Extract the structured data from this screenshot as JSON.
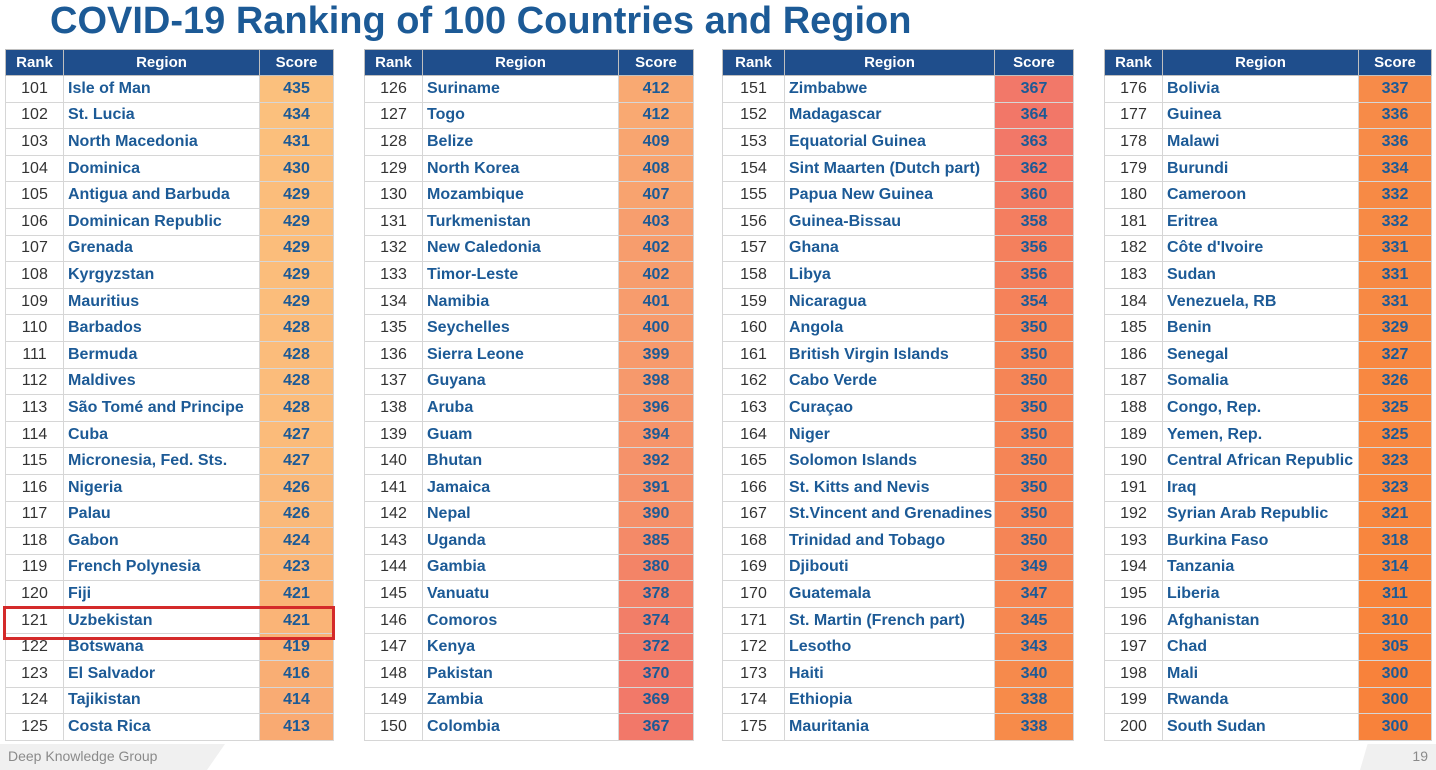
{
  "title": "COVID-19 Ranking of 100 Countries and Region",
  "headers": {
    "rank": "Rank",
    "region": "Region",
    "score": "Score"
  },
  "footer": {
    "left": "Deep Knowledge Group",
    "page": "19"
  },
  "highlighted_region": "Uzbekistan",
  "score_colors": {
    "high": "#fbc07d",
    "mid": "#f3896a",
    "low": "#f8823b"
  },
  "tables": [
    {
      "rows": [
        {
          "rank": "101",
          "region": "Isle of Man",
          "score": "435",
          "color": "#fbc07d"
        },
        {
          "rank": "102",
          "region": "St. Lucia",
          "score": "434",
          "color": "#fbc07d"
        },
        {
          "rank": "103",
          "region": "North Macedonia",
          "score": "431",
          "color": "#fbbf7c"
        },
        {
          "rank": "104",
          "region": "Dominica",
          "score": "430",
          "color": "#fbbe7c"
        },
        {
          "rank": "105",
          "region": "Antigua and Barbuda",
          "score": "429",
          "color": "#fbbd7b"
        },
        {
          "rank": "106",
          "region": "Dominican Republic",
          "score": "429",
          "color": "#fbbd7b"
        },
        {
          "rank": "107",
          "region": "Grenada",
          "score": "429",
          "color": "#fbbd7b"
        },
        {
          "rank": "108",
          "region": "Kyrgyzstan",
          "score": "429",
          "color": "#fbbd7b"
        },
        {
          "rank": "109",
          "region": "Mauritius",
          "score": "429",
          "color": "#fbbd7b"
        },
        {
          "rank": "110",
          "region": "Barbados",
          "score": "428",
          "color": "#fbbc7b"
        },
        {
          "rank": "111",
          "region": "Bermuda",
          "score": "428",
          "color": "#fbbc7b"
        },
        {
          "rank": "112",
          "region": "Maldives",
          "score": "428",
          "color": "#fbbc7b"
        },
        {
          "rank": "113",
          "region": "São Tomé and Principe",
          "score": "428",
          "color": "#fbbc7b"
        },
        {
          "rank": "114",
          "region": "Cuba",
          "score": "427",
          "color": "#fbbb7a"
        },
        {
          "rank": "115",
          "region": "Micronesia, Fed. Sts.",
          "score": "427",
          "color": "#fbbb7a"
        },
        {
          "rank": "116",
          "region": "Nigeria",
          "score": "426",
          "color": "#fab97a"
        },
        {
          "rank": "117",
          "region": "Palau",
          "score": "426",
          "color": "#fab97a"
        },
        {
          "rank": "118",
          "region": "Gabon",
          "score": "424",
          "color": "#fab779"
        },
        {
          "rank": "119",
          "region": "French Polynesia",
          "score": "423",
          "color": "#fab678"
        },
        {
          "rank": "120",
          "region": "Fiji",
          "score": "421",
          "color": "#fab477"
        },
        {
          "rank": "121",
          "region": "Uzbekistan",
          "score": "421",
          "color": "#fab477"
        },
        {
          "rank": "122",
          "region": "Botswana",
          "score": "419",
          "color": "#fab276"
        },
        {
          "rank": "123",
          "region": "El Salvador",
          "score": "416",
          "color": "#f9ae74"
        },
        {
          "rank": "124",
          "region": "Tajikistan",
          "score": "414",
          "color": "#f9ab73"
        },
        {
          "rank": "125",
          "region": "Costa Rica",
          "score": "413",
          "color": "#f9aa72"
        }
      ]
    },
    {
      "rows": [
        {
          "rank": "126",
          "region": "Suriname",
          "score": "412",
          "color": "#f9a972"
        },
        {
          "rank": "127",
          "region": "Togo",
          "score": "412",
          "color": "#f9a972"
        },
        {
          "rank": "128",
          "region": "Belize",
          "score": "409",
          "color": "#f8a570"
        },
        {
          "rank": "129",
          "region": "North Korea",
          "score": "408",
          "color": "#f8a470"
        },
        {
          "rank": "130",
          "region": "Mozambique",
          "score": "407",
          "color": "#f8a36f"
        },
        {
          "rank": "131",
          "region": "Turkmenistan",
          "score": "403",
          "color": "#f79e6e"
        },
        {
          "rank": "132",
          "region": "New Caledonia",
          "score": "402",
          "color": "#f79d6d"
        },
        {
          "rank": "133",
          "region": "Timor-Leste",
          "score": "402",
          "color": "#f79d6d"
        },
        {
          "rank": "134",
          "region": "Namibia",
          "score": "401",
          "color": "#f79c6d"
        },
        {
          "rank": "135",
          "region": "Seychelles",
          "score": "400",
          "color": "#f79b6c"
        },
        {
          "rank": "136",
          "region": "Sierra Leone",
          "score": "399",
          "color": "#f79a6c"
        },
        {
          "rank": "137",
          "region": "Guyana",
          "score": "398",
          "color": "#f6996c"
        },
        {
          "rank": "138",
          "region": "Aruba",
          "score": "396",
          "color": "#f6966b"
        },
        {
          "rank": "139",
          "region": "Guam",
          "score": "394",
          "color": "#f6946a"
        },
        {
          "rank": "140",
          "region": "Bhutan",
          "score": "392",
          "color": "#f5926a"
        },
        {
          "rank": "141",
          "region": "Jamaica",
          "score": "391",
          "color": "#f5916a"
        },
        {
          "rank": "142",
          "region": "Nepal",
          "score": "390",
          "color": "#f59069"
        },
        {
          "rank": "143",
          "region": "Uganda",
          "score": "385",
          "color": "#f48a68"
        },
        {
          "rank": "144",
          "region": "Gambia",
          "score": "380",
          "color": "#f38467"
        },
        {
          "rank": "145",
          "region": "Vanuatu",
          "score": "378",
          "color": "#f38267"
        },
        {
          "rank": "146",
          "region": "Comoros",
          "score": "374",
          "color": "#f27e68"
        },
        {
          "rank": "147",
          "region": "Kenya",
          "score": "372",
          "color": "#f27c68"
        },
        {
          "rank": "148",
          "region": "Pakistan",
          "score": "370",
          "color": "#f27a69"
        },
        {
          "rank": "149",
          "region": "Zambia",
          "score": "369",
          "color": "#f27969"
        },
        {
          "rank": "150",
          "region": "Colombia",
          "score": "367",
          "color": "#f27869"
        }
      ]
    },
    {
      "rows": [
        {
          "rank": "151",
          "region": "Zimbabwe",
          "score": "367",
          "color": "#f27869"
        },
        {
          "rank": "152",
          "region": "Madagascar",
          "score": "364",
          "color": "#f27768"
        },
        {
          "rank": "153",
          "region": "Equatorial Guinea",
          "score": "363",
          "color": "#f27868"
        },
        {
          "rank": "154",
          "region": "Sint Maarten (Dutch part)",
          "score": "362",
          "color": "#f37a66"
        },
        {
          "rank": "155",
          "region": "Papua New Guinea",
          "score": "360",
          "color": "#f37c63"
        },
        {
          "rank": "156",
          "region": "Guinea-Bissau",
          "score": "358",
          "color": "#f47e60"
        },
        {
          "rank": "157",
          "region": "Ghana",
          "score": "356",
          "color": "#f4805d"
        },
        {
          "rank": "158",
          "region": "Libya",
          "score": "356",
          "color": "#f4805d"
        },
        {
          "rank": "159",
          "region": "Nicaragua",
          "score": "354",
          "color": "#f5825a"
        },
        {
          "rank": "160",
          "region": "Angola",
          "score": "350",
          "color": "#f58556"
        },
        {
          "rank": "161",
          "region": "British Virgin Islands",
          "score": "350",
          "color": "#f58556"
        },
        {
          "rank": "162",
          "region": "Cabo Verde",
          "score": "350",
          "color": "#f58556"
        },
        {
          "rank": "163",
          "region": "Curaçao",
          "score": "350",
          "color": "#f58556"
        },
        {
          "rank": "164",
          "region": "Niger",
          "score": "350",
          "color": "#f58556"
        },
        {
          "rank": "165",
          "region": "Solomon Islands",
          "score": "350",
          "color": "#f58556"
        },
        {
          "rank": "166",
          "region": "St. Kitts and Nevis",
          "score": "350",
          "color": "#f58556"
        },
        {
          "rank": "167",
          "region": "St.Vincent and Grenadines",
          "score": "350",
          "color": "#f58556"
        },
        {
          "rank": "168",
          "region": "Trinidad and Tobago",
          "score": "350",
          "color": "#f58556"
        },
        {
          "rank": "169",
          "region": "Djibouti",
          "score": "349",
          "color": "#f58655"
        },
        {
          "rank": "170",
          "region": "Guatemala",
          "score": "347",
          "color": "#f68753"
        },
        {
          "rank": "171",
          "region": "St. Martin (French part)",
          "score": "345",
          "color": "#f68851"
        },
        {
          "rank": "172",
          "region": "Lesotho",
          "score": "343",
          "color": "#f6894f"
        },
        {
          "rank": "173",
          "region": "Haiti",
          "score": "340",
          "color": "#f68a4c"
        },
        {
          "rank": "174",
          "region": "Ethiopia",
          "score": "338",
          "color": "#f78b4a"
        },
        {
          "rank": "175",
          "region": "Mauritania",
          "score": "338",
          "color": "#f78b4a"
        }
      ]
    },
    {
      "rows": [
        {
          "rank": "176",
          "region": "Bolivia",
          "score": "337",
          "color": "#f78b49"
        },
        {
          "rank": "177",
          "region": "Guinea",
          "score": "336",
          "color": "#f78b48"
        },
        {
          "rank": "178",
          "region": "Malawi",
          "score": "336",
          "color": "#f78b48"
        },
        {
          "rank": "179",
          "region": "Burundi",
          "score": "334",
          "color": "#f78a46"
        },
        {
          "rank": "180",
          "region": "Cameroon",
          "score": "332",
          "color": "#f78a45"
        },
        {
          "rank": "181",
          "region": "Eritrea",
          "score": "332",
          "color": "#f78a45"
        },
        {
          "rank": "182",
          "region": "Côte d'Ivoire",
          "score": "331",
          "color": "#f78944"
        },
        {
          "rank": "183",
          "region": "Sudan",
          "score": "331",
          "color": "#f78944"
        },
        {
          "rank": "184",
          "region": "Venezuela, RB",
          "score": "331",
          "color": "#f78944"
        },
        {
          "rank": "185",
          "region": "Benin",
          "score": "329",
          "color": "#f78943"
        },
        {
          "rank": "186",
          "region": "Senegal",
          "score": "327",
          "color": "#f88842"
        },
        {
          "rank": "187",
          "region": "Somalia",
          "score": "326",
          "color": "#f88841"
        },
        {
          "rank": "188",
          "region": "Congo, Rep.",
          "score": "325",
          "color": "#f88841"
        },
        {
          "rank": "189",
          "region": "Yemen, Rep.",
          "score": "325",
          "color": "#f88841"
        },
        {
          "rank": "190",
          "region": "Central African Republic",
          "score": "323",
          "color": "#f88740"
        },
        {
          "rank": "191",
          "region": "Iraq",
          "score": "323",
          "color": "#f88740"
        },
        {
          "rank": "192",
          "region": "Syrian Arab Republic",
          "score": "321",
          "color": "#f8873f"
        },
        {
          "rank": "193",
          "region": "Burkina Faso",
          "score": "318",
          "color": "#f8863e"
        },
        {
          "rank": "194",
          "region": "Tanzania",
          "score": "314",
          "color": "#f8853d"
        },
        {
          "rank": "195",
          "region": "Liberia",
          "score": "311",
          "color": "#f8843c"
        },
        {
          "rank": "196",
          "region": "Afghanistan",
          "score": "310",
          "color": "#f8843c"
        },
        {
          "rank": "197",
          "region": "Chad",
          "score": "305",
          "color": "#f8833b"
        },
        {
          "rank": "198",
          "region": "Mali",
          "score": "300",
          "color": "#f8823b"
        },
        {
          "rank": "199",
          "region": "Rwanda",
          "score": "300",
          "color": "#f8823b"
        },
        {
          "rank": "200",
          "region": "South Sudan",
          "score": "300",
          "color": "#f8823b"
        }
      ]
    }
  ]
}
